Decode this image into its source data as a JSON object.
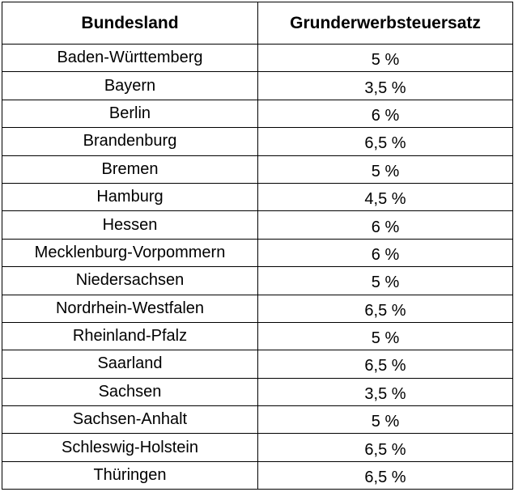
{
  "table": {
    "headers": {
      "state": "Bundesland",
      "rate": "Grunderwerbsteuersatz"
    },
    "rows": [
      {
        "state": "Baden-Württemberg",
        "rate": "5 %"
      },
      {
        "state": "Bayern",
        "rate": "3,5 %"
      },
      {
        "state": "Berlin",
        "rate": "6 %"
      },
      {
        "state": "Brandenburg",
        "rate": "6,5 %"
      },
      {
        "state": "Bremen",
        "rate": "5 %"
      },
      {
        "state": "Hamburg",
        "rate": "4,5 %"
      },
      {
        "state": "Hessen",
        "rate": "6 %"
      },
      {
        "state": "Mecklenburg-Vorpommern",
        "rate": "6 %"
      },
      {
        "state": "Niedersachsen",
        "rate": "5 %"
      },
      {
        "state": "Nordrhein-Westfalen",
        "rate": "6,5 %"
      },
      {
        "state": "Rheinland-Pfalz",
        "rate": "5 %"
      },
      {
        "state": "Saarland",
        "rate": "6,5 %"
      },
      {
        "state": "Sachsen",
        "rate": "3,5 %"
      },
      {
        "state": "Sachsen-Anhalt",
        "rate": "5 %"
      },
      {
        "state": "Schleswig-Holstein",
        "rate": "6,5 %"
      },
      {
        "state": "Thüringen",
        "rate": "6,5 %"
      }
    ]
  }
}
